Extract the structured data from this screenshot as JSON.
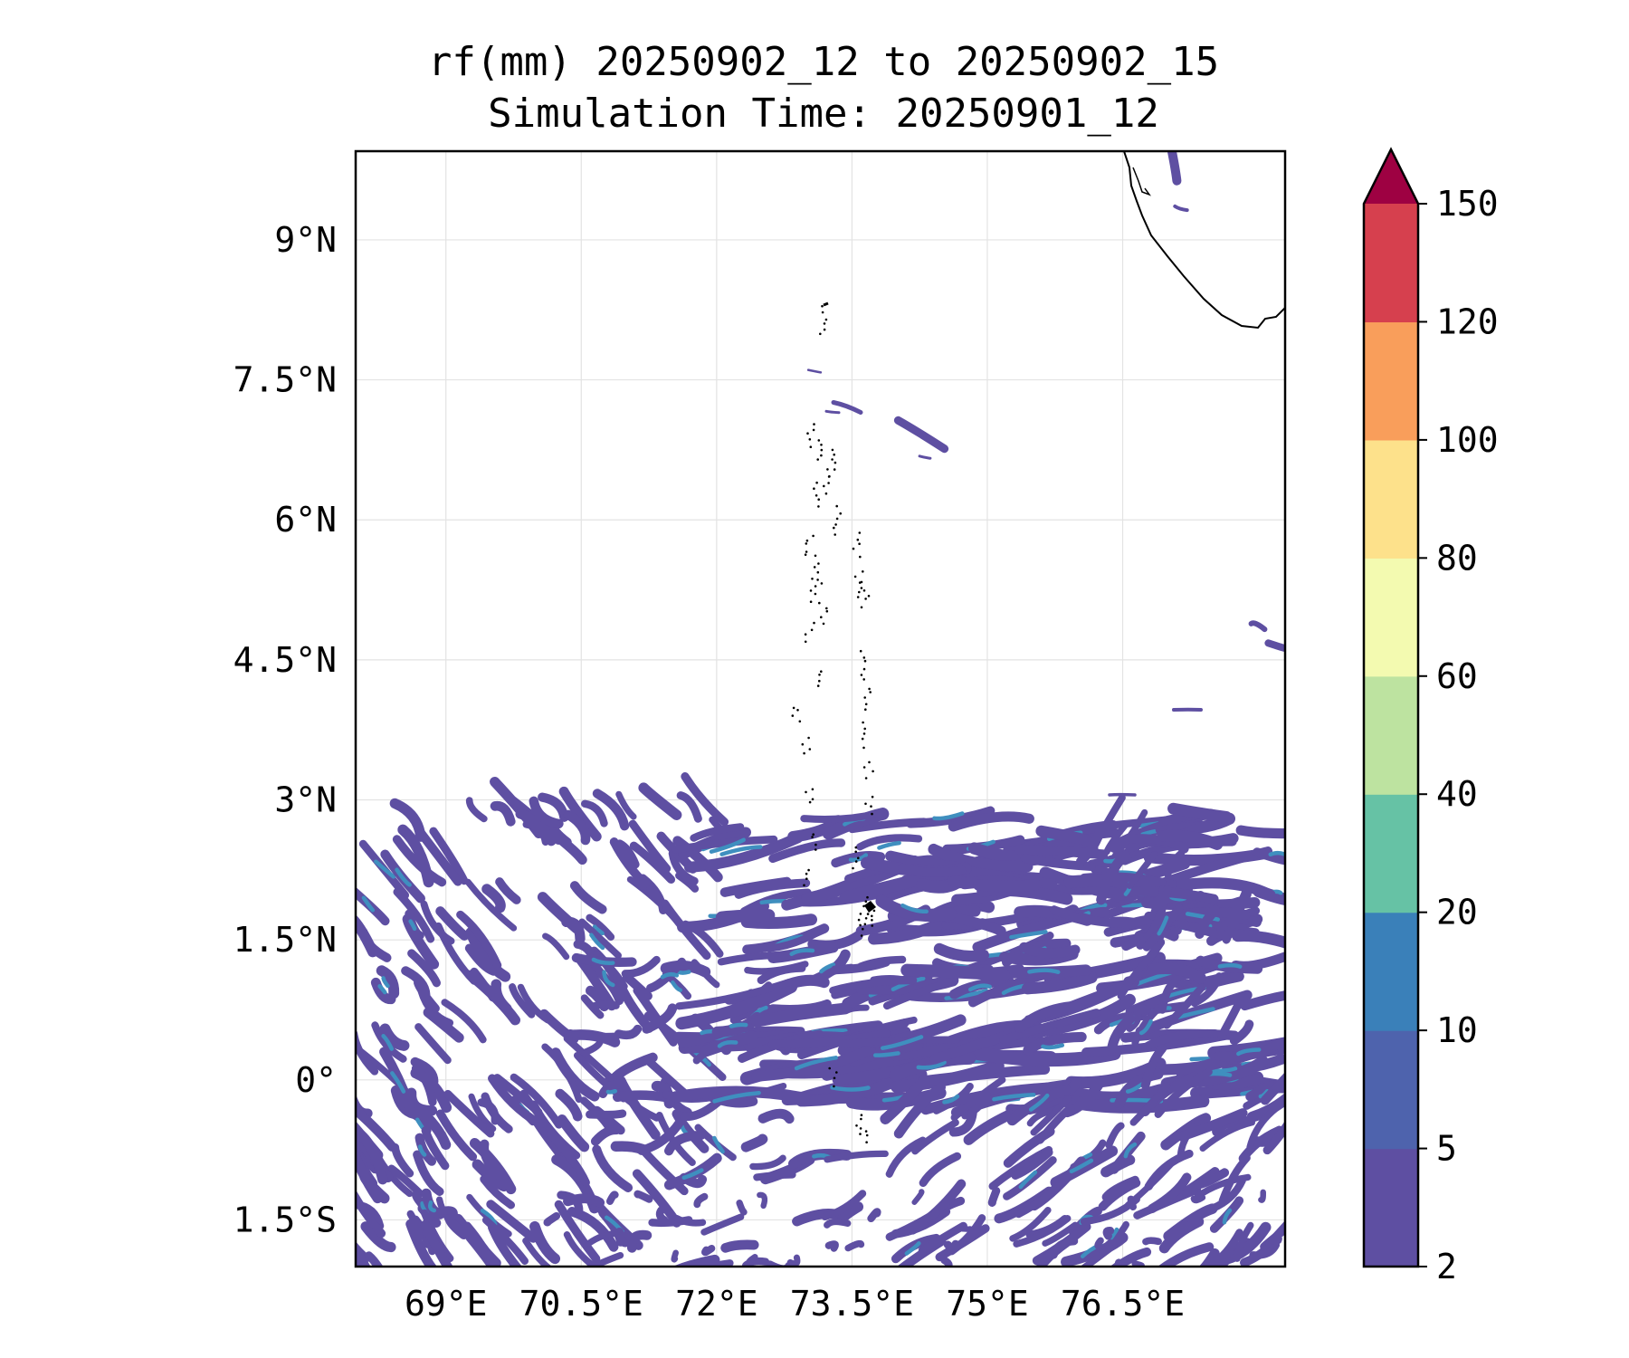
{
  "title": {
    "line1": "rf(mm) 20250902_12 to 20250902_15",
    "line2": "Simulation Time: 20250901_12"
  },
  "map": {
    "lon_range": [
      68,
      78.3
    ],
    "lat_range": [
      -2,
      9.95
    ],
    "x_ticks": [
      {
        "value": 69,
        "label": "69°E"
      },
      {
        "value": 70.5,
        "label": "70.5°E"
      },
      {
        "value": 72,
        "label": "72°E"
      },
      {
        "value": 73.5,
        "label": "73.5°E"
      },
      {
        "value": 75,
        "label": "75°E"
      },
      {
        "value": 76.5,
        "label": "76.5°E"
      }
    ],
    "y_ticks": [
      {
        "value": 9,
        "label": "9°N"
      },
      {
        "value": 7.5,
        "label": "7.5°N"
      },
      {
        "value": 6,
        "label": "6°N"
      },
      {
        "value": 4.5,
        "label": "4.5°N"
      },
      {
        "value": 3,
        "label": "3°N"
      },
      {
        "value": 1.5,
        "label": "1.5°N"
      },
      {
        "value": 0,
        "label": "0°"
      },
      {
        "value": -1.5,
        "label": "1.5°S"
      }
    ],
    "grid": true,
    "rain_color": "#5e4fa2",
    "rain_color_mid": "#3f8fbf"
  },
  "colorbar": {
    "levels": [
      "2",
      "5",
      "10",
      "20",
      "40",
      "60",
      "80",
      "100",
      "120",
      "150"
    ],
    "colors": [
      "#5e4fa2",
      "#4e63ad",
      "#3a80b9",
      "#66c2a5",
      "#bde3a0",
      "#f3fab0",
      "#fde18b",
      "#f99e5b",
      "#d6404e"
    ],
    "extend_color": "#9e0142",
    "extend": "max"
  }
}
